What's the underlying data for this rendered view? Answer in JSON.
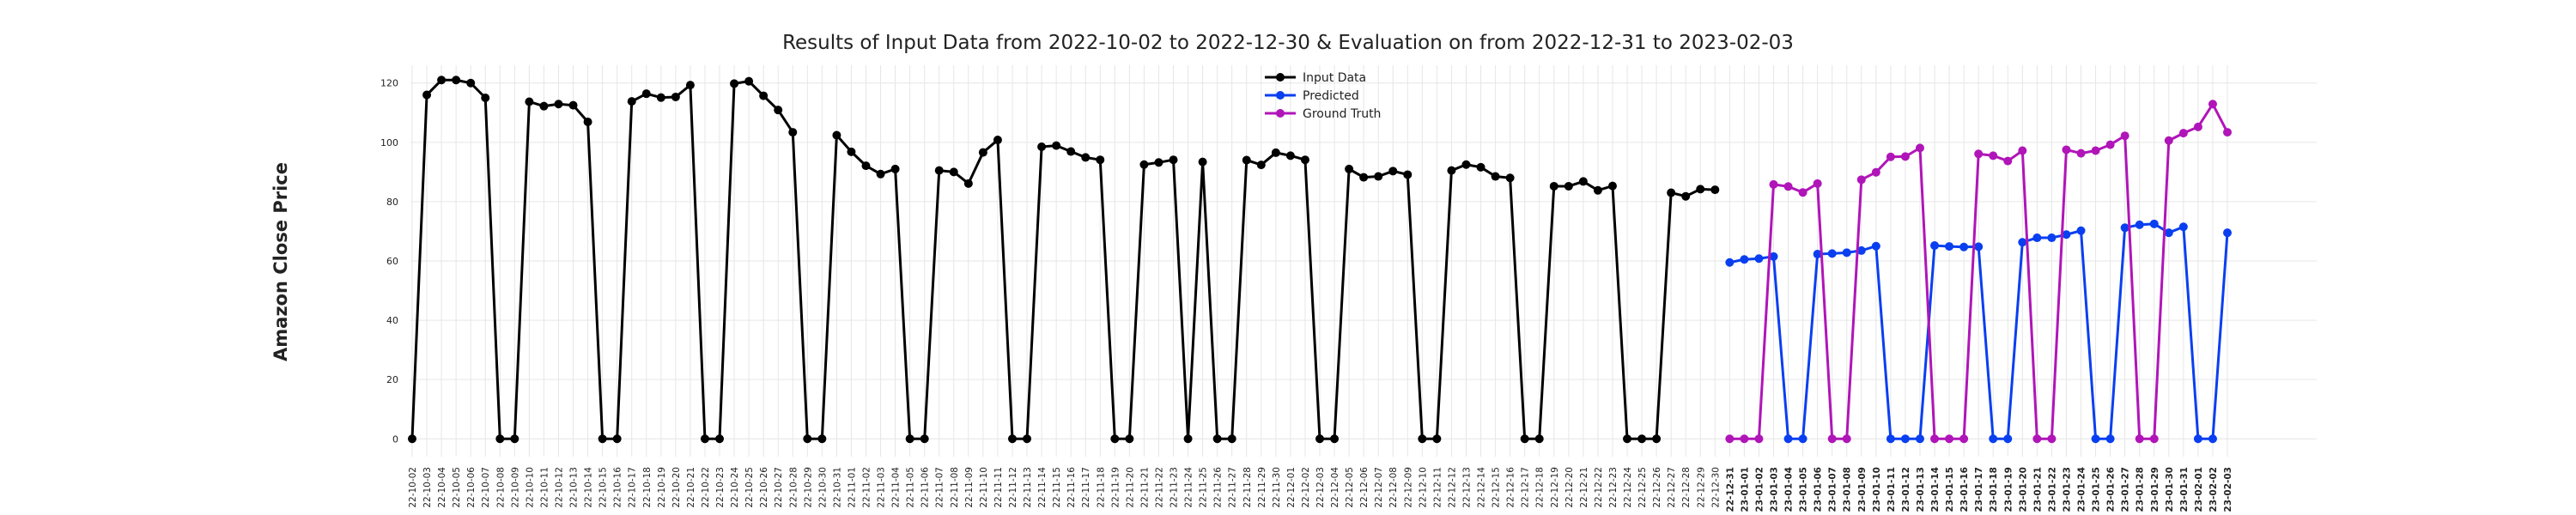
{
  "chart_data": {
    "type": "line",
    "title": "Results of Input Data from 2022-10-02 to 2022-12-30 & Evaluation on from 2022-12-31 to 2023-02-03",
    "ylabel": "Amazon Close Price",
    "categories": [
      "22-10-02",
      "22-10-03",
      "22-10-04",
      "22-10-05",
      "22-10-06",
      "22-10-07",
      "22-10-08",
      "22-10-09",
      "22-10-10",
      "22-10-11",
      "22-10-12",
      "22-10-13",
      "22-10-14",
      "22-10-15",
      "22-10-16",
      "22-10-17",
      "22-10-18",
      "22-10-19",
      "22-10-20",
      "22-10-21",
      "22-10-22",
      "22-10-23",
      "22-10-24",
      "22-10-25",
      "22-10-26",
      "22-10-27",
      "22-10-28",
      "22-10-29",
      "22-10-30",
      "22-10-31",
      "22-11-01",
      "22-11-02",
      "22-11-03",
      "22-11-04",
      "22-11-05",
      "22-11-06",
      "22-11-07",
      "22-11-08",
      "22-11-09",
      "22-11-10",
      "22-11-11",
      "22-11-12",
      "22-11-13",
      "22-11-14",
      "22-11-15",
      "22-11-16",
      "22-11-17",
      "22-11-18",
      "22-11-19",
      "22-11-20",
      "22-11-21",
      "22-11-22",
      "22-11-23",
      "22-11-24",
      "22-11-25",
      "22-11-26",
      "22-11-27",
      "22-11-28",
      "22-11-29",
      "22-11-30",
      "22-12-01",
      "22-12-02",
      "22-12-03",
      "22-12-04",
      "22-12-05",
      "22-12-06",
      "22-12-07",
      "22-12-08",
      "22-12-09",
      "22-12-10",
      "22-12-11",
      "22-12-12",
      "22-12-13",
      "22-12-14",
      "22-12-15",
      "22-12-16",
      "22-12-17",
      "22-12-18",
      "22-12-19",
      "22-12-20",
      "22-12-21",
      "22-12-22",
      "22-12-23",
      "22-12-24",
      "22-12-25",
      "22-12-26",
      "22-12-27",
      "22-12-28",
      "22-12-29",
      "22-12-30",
      "22-12-31",
      "23-01-01",
      "23-01-02",
      "23-01-03",
      "23-01-04",
      "23-01-05",
      "23-01-06",
      "23-01-07",
      "23-01-08",
      "23-01-09",
      "23-01-10",
      "23-01-11",
      "23-01-12",
      "23-01-13",
      "23-01-14",
      "23-01-15",
      "23-01-16",
      "23-01-17",
      "23-01-18",
      "23-01-19",
      "23-01-20",
      "23-01-21",
      "23-01-22",
      "23-01-23",
      "23-01-24",
      "23-01-25",
      "23-01-26",
      "23-01-27",
      "23-01-28",
      "23-01-29",
      "23-01-30",
      "23-01-31",
      "23-02-01",
      "23-02-02",
      "23-02-03"
    ],
    "series": [
      {
        "name": "Input Data",
        "color": "#000000",
        "values": [
          0,
          116,
          121,
          121,
          120,
          115,
          0,
          0,
          113.7,
          112.2,
          112.9,
          112.5,
          106.9,
          0,
          0,
          113.8,
          116.4,
          115.1,
          115.3,
          119.3,
          0,
          0,
          119.8,
          120.6,
          115.7,
          110.9,
          103.4,
          0,
          0,
          102.4,
          96.8,
          92.1,
          89.3,
          91.0,
          0,
          0,
          90.5,
          90.0,
          86.1,
          96.6,
          100.8,
          0,
          0,
          98.5,
          98.9,
          96.9,
          94.9,
          94.1,
          0,
          0,
          92.5,
          93.2,
          94.1,
          0,
          93.4,
          0,
          0,
          94.0,
          92.4,
          96.5,
          95.5,
          94.1,
          0,
          0,
          91.0,
          88.2,
          88.5,
          90.3,
          89.1,
          0,
          0,
          90.5,
          92.5,
          91.6,
          88.5,
          88.0,
          0,
          0,
          85.2,
          85.2,
          86.8,
          83.8,
          85.3,
          0,
          0,
          0,
          83.0,
          81.8,
          84.2,
          84.0,
          null,
          null,
          null,
          null,
          null,
          null,
          null,
          null,
          null,
          null,
          null,
          null,
          null,
          null,
          null,
          null,
          null,
          null,
          null,
          null,
          null,
          null,
          null,
          null,
          null,
          null,
          null,
          null,
          null,
          null,
          null,
          null,
          null,
          null,
          null
        ]
      },
      {
        "name": "Predicted",
        "color": "#0a3ff0",
        "values": [
          null,
          null,
          null,
          null,
          null,
          null,
          null,
          null,
          null,
          null,
          null,
          null,
          null,
          null,
          null,
          null,
          null,
          null,
          null,
          null,
          null,
          null,
          null,
          null,
          null,
          null,
          null,
          null,
          null,
          null,
          null,
          null,
          null,
          null,
          null,
          null,
          null,
          null,
          null,
          null,
          null,
          null,
          null,
          null,
          null,
          null,
          null,
          null,
          null,
          null,
          null,
          null,
          null,
          null,
          null,
          null,
          null,
          null,
          null,
          null,
          null,
          null,
          null,
          null,
          null,
          null,
          null,
          null,
          null,
          null,
          null,
          null,
          null,
          null,
          null,
          null,
          null,
          null,
          null,
          null,
          null,
          null,
          null,
          null,
          null,
          null,
          null,
          null,
          null,
          null,
          59.5,
          60.5,
          60.8,
          61.5,
          0,
          0,
          62.3,
          62.5,
          62.8,
          63.5,
          65.0,
          0,
          0,
          0,
          65.2,
          64.9,
          64.7,
          64.8,
          0,
          0,
          66.3,
          67.8,
          67.8,
          68.9,
          70.2,
          0,
          0,
          71.2,
          72.2,
          72.5,
          69.5,
          71.5,
          0,
          0,
          69.5
        ]
      },
      {
        "name": "Ground Truth",
        "color": "#b015b8",
        "values": [
          null,
          null,
          null,
          null,
          null,
          null,
          null,
          null,
          null,
          null,
          null,
          null,
          null,
          null,
          null,
          null,
          null,
          null,
          null,
          null,
          null,
          null,
          null,
          null,
          null,
          null,
          null,
          null,
          null,
          null,
          null,
          null,
          null,
          null,
          null,
          null,
          null,
          null,
          null,
          null,
          null,
          null,
          null,
          null,
          null,
          null,
          null,
          null,
          null,
          null,
          null,
          null,
          null,
          null,
          null,
          null,
          null,
          null,
          null,
          null,
          null,
          null,
          null,
          null,
          null,
          null,
          null,
          null,
          null,
          null,
          null,
          null,
          null,
          null,
          null,
          null,
          null,
          null,
          null,
          null,
          null,
          null,
          null,
          null,
          null,
          null,
          null,
          null,
          null,
          null,
          0,
          0,
          0,
          85.8,
          85.1,
          83.1,
          86.1,
          0,
          0,
          87.4,
          89.9,
          95.1,
          95.2,
          98.1,
          0,
          0,
          0,
          96.1,
          95.5,
          93.7,
          97.2,
          0,
          0,
          97.5,
          96.3,
          97.2,
          99.2,
          102.2,
          0,
          0,
          100.6,
          103.1,
          105.2,
          112.9,
          103.4
        ]
      }
    ],
    "ylim": [
      -6,
      126
    ],
    "yticks": [
      0,
      20,
      40,
      60,
      80,
      100,
      120
    ],
    "grid": true,
    "legend": "upper center"
  }
}
